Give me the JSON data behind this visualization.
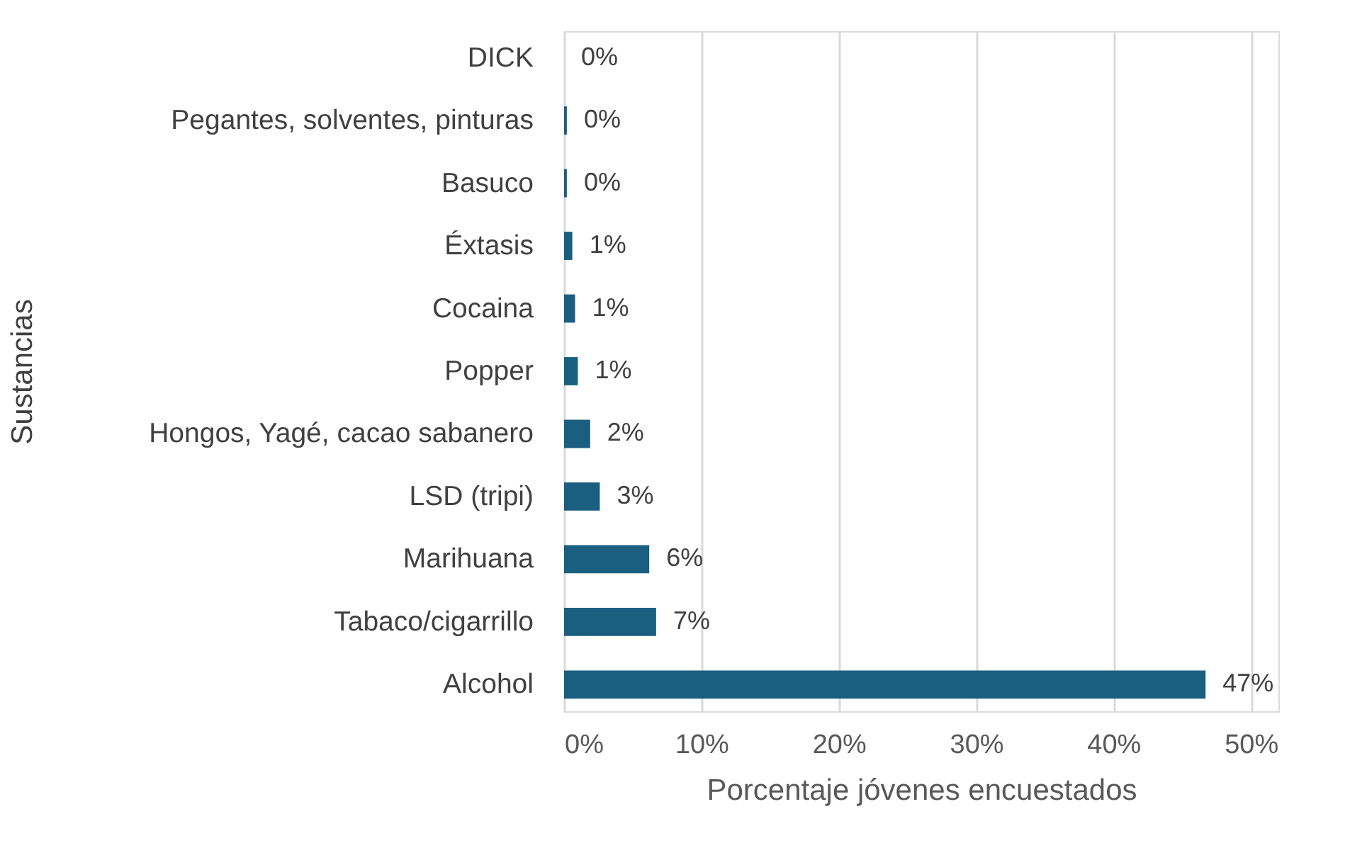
{
  "chart_data": {
    "type": "bar",
    "orientation": "horizontal",
    "xlabel": "Porcentaje jóvenes encuestados",
    "ylabel": "Sustancias",
    "categories": [
      "DICK",
      "Pegantes, solventes, pinturas",
      "Basuco",
      "Éxtasis",
      "Cocaina",
      "Popper",
      "Hongos, Yagé, cacao sabanero",
      "LSD (tripi)",
      "Marihuana",
      "Tabaco/cigarrillo",
      "Alcohol"
    ],
    "values": [
      0,
      0.2,
      0.2,
      0.6,
      0.8,
      1.0,
      1.9,
      2.6,
      6.2,
      6.7,
      46.7
    ],
    "value_labels": [
      "0%",
      "0%",
      "0%",
      "1%",
      "1%",
      "1%",
      "2%",
      "3%",
      "6%",
      "7%",
      "47%"
    ],
    "color": "#1a5e80",
    "xlim": [
      0,
      52
    ],
    "xticks": [
      {
        "value": 0,
        "label": "0%"
      },
      {
        "value": 10,
        "label": "10%"
      },
      {
        "value": 20,
        "label": "20%"
      },
      {
        "value": 30,
        "label": "30%"
      },
      {
        "value": 40,
        "label": "40%"
      },
      {
        "value": 50,
        "label": "50%"
      }
    ],
    "grid": "x",
    "legend": false
  }
}
